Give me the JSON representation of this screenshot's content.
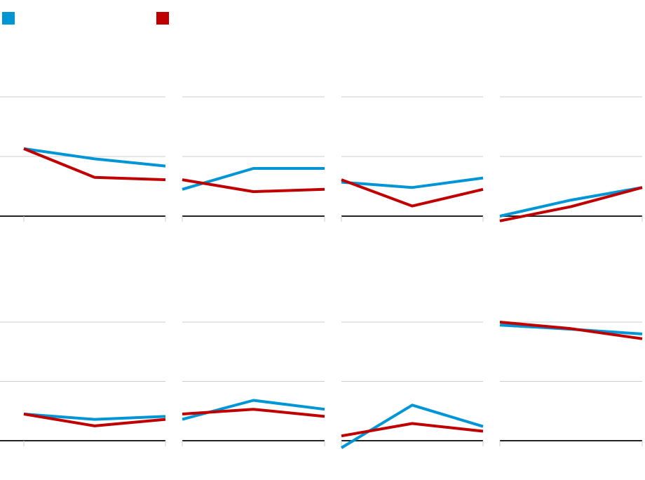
{
  "legend": {
    "series_a_label": "",
    "series_b_label": "",
    "series_a_color": "#0096d6",
    "series_b_color": "#c00000"
  },
  "chart_data": {
    "type": "line",
    "layout": "small-multiples",
    "grid": true,
    "x": [
      0,
      1,
      2
    ],
    "ylim": [
      0,
      2
    ],
    "gridlines": [
      1,
      2
    ],
    "panels": [
      {
        "series": [
          {
            "values": [
              1.13,
              0.96,
              0.84
            ]
          },
          {
            "values": [
              1.13,
              0.65,
              0.61
            ]
          }
        ]
      },
      {
        "series": [
          {
            "values": [
              0.45,
              0.8,
              0.8
            ]
          },
          {
            "values": [
              0.61,
              0.41,
              0.45
            ]
          }
        ]
      },
      {
        "series": [
          {
            "values": [
              0.57,
              0.48,
              0.64
            ]
          },
          {
            "values": [
              0.61,
              0.17,
              0.45
            ]
          }
        ]
      },
      {
        "series": [
          {
            "values": [
              0.0,
              0.27,
              0.48
            ]
          },
          {
            "values": [
              -0.08,
              0.16,
              0.48
            ]
          }
        ]
      },
      {
        "series": [
          {
            "values": [
              0.45,
              0.36,
              0.41
            ]
          },
          {
            "values": [
              0.45,
              0.25,
              0.36
            ]
          }
        ]
      },
      {
        "series": [
          {
            "values": [
              0.36,
              0.68,
              0.53
            ]
          },
          {
            "values": [
              0.45,
              0.53,
              0.41
            ]
          }
        ]
      },
      {
        "series": [
          {
            "values": [
              -0.12,
              0.6,
              0.24
            ]
          },
          {
            "values": [
              0.08,
              0.29,
              0.16
            ]
          }
        ]
      },
      {
        "series": [
          {
            "values": [
              1.95,
              1.88,
              1.8
            ]
          },
          {
            "values": [
              2.0,
              1.89,
              1.72
            ]
          }
        ]
      }
    ]
  }
}
